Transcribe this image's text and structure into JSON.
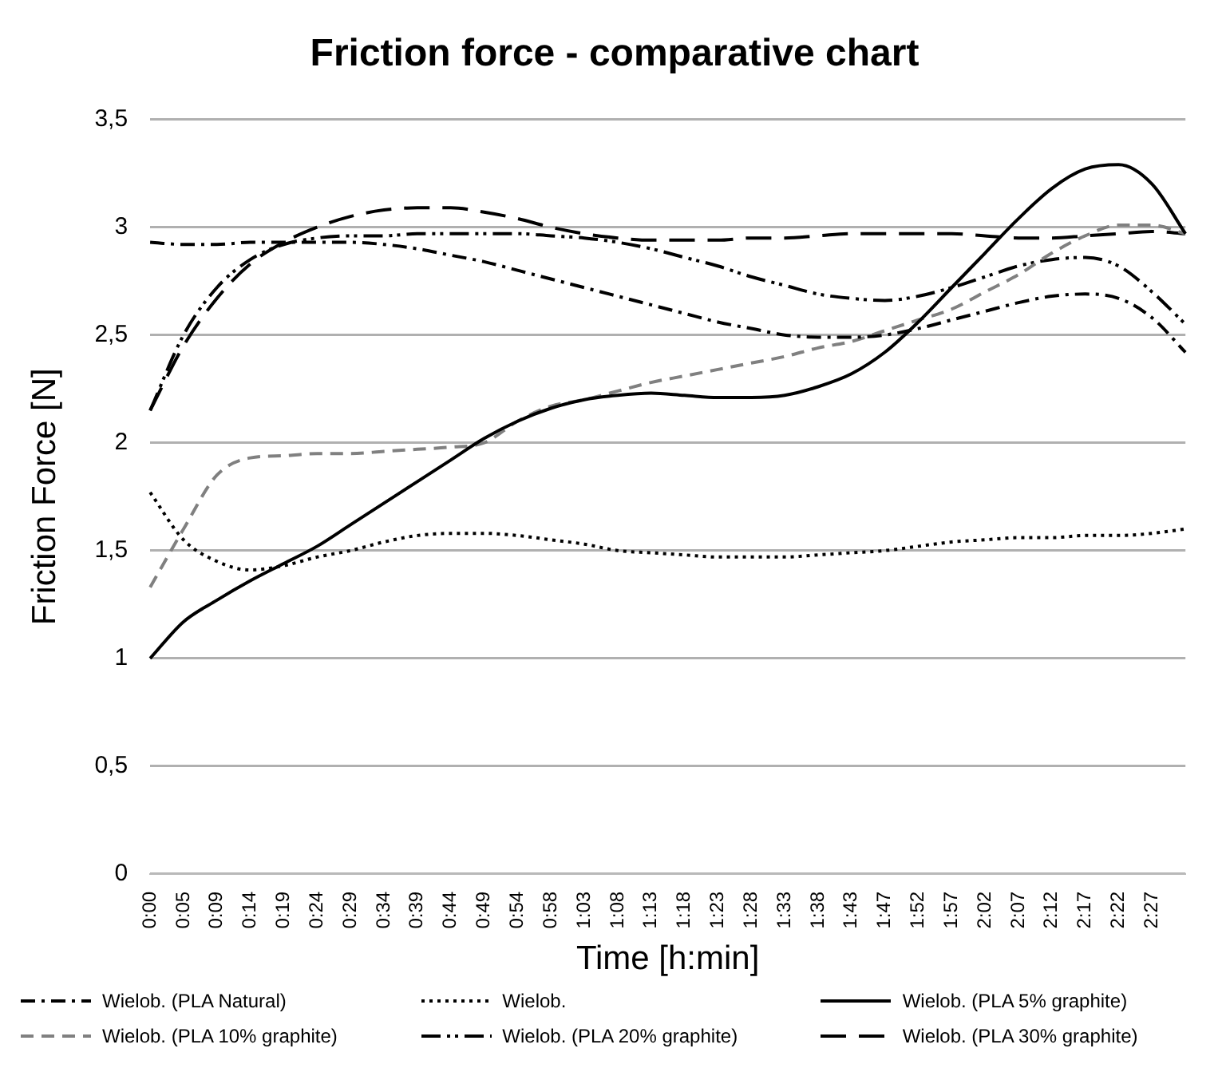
{
  "chart_data": {
    "type": "line",
    "title": "Friction force - comparative chart",
    "xlabel": "Time [h:min]",
    "ylabel": "Friction Force [N]",
    "categories": [
      "0:00",
      "0:05",
      "0:09",
      "0:14",
      "0:19",
      "0:24",
      "0:29",
      "0:34",
      "0:39",
      "0:44",
      "0:49",
      "0:54",
      "0:58",
      "1:03",
      "1:08",
      "1:13",
      "1:18",
      "1:23",
      "1:28",
      "1:33",
      "1:38",
      "1:43",
      "1:47",
      "1:52",
      "1:57",
      "2:02",
      "2:07",
      "2:12",
      "2:17",
      "2:22",
      "2:27",
      null
    ],
    "ylim": [
      0,
      3.5
    ],
    "yticks": [
      0,
      {
        "value": 0.5,
        "label": "0,5"
      },
      1,
      {
        "value": 1.5,
        "label": "1,5"
      },
      2,
      {
        "value": 2.5,
        "label": "2,5"
      },
      3,
      {
        "value": 3.5,
        "label": "3,5"
      }
    ],
    "grid": "y",
    "legend": "bottom",
    "marker": "none",
    "series": [
      {
        "name": "Wielob. (PLA Natural)",
        "color": "#000000",
        "line_style": "dashdot",
        "values": [
          2.93,
          2.92,
          2.92,
          2.93,
          2.93,
          2.93,
          2.93,
          2.92,
          2.9,
          2.87,
          2.84,
          2.8,
          2.76,
          2.72,
          2.68,
          2.64,
          2.6,
          2.56,
          2.53,
          2.5,
          2.49,
          2.49,
          2.5,
          2.53,
          2.57,
          2.61,
          2.65,
          2.68,
          2.69,
          2.67,
          2.58,
          2.42
        ]
      },
      {
        "name": "Wielob.",
        "color": "#000000",
        "line_style": "dotted",
        "values": [
          1.77,
          1.55,
          1.45,
          1.41,
          1.43,
          1.47,
          1.5,
          1.54,
          1.57,
          1.58,
          1.58,
          1.57,
          1.55,
          1.53,
          1.5,
          1.49,
          1.48,
          1.47,
          1.47,
          1.47,
          1.48,
          1.49,
          1.5,
          1.52,
          1.54,
          1.55,
          1.56,
          1.56,
          1.57,
          1.57,
          1.58,
          1.6
        ]
      },
      {
        "name": "Wielob. (PLA 5% graphite)",
        "color": "#000000",
        "line_style": "solid",
        "values": [
          1.0,
          1.17,
          1.27,
          1.36,
          1.44,
          1.52,
          1.62,
          1.72,
          1.82,
          1.92,
          2.02,
          2.1,
          2.16,
          2.2,
          2.22,
          2.23,
          2.22,
          2.21,
          2.21,
          2.22,
          2.26,
          2.32,
          2.42,
          2.56,
          2.72,
          2.88,
          3.04,
          3.18,
          3.27,
          3.29,
          3.2,
          2.97
        ]
      },
      {
        "name": "Wielob. (PLA 10% graphite)",
        "color": "#808080",
        "line_style": "dashed",
        "values": [
          1.33,
          1.6,
          1.85,
          1.93,
          1.94,
          1.95,
          1.95,
          1.96,
          1.97,
          1.98,
          2.0,
          2.1,
          2.17,
          2.2,
          2.24,
          2.28,
          2.31,
          2.34,
          2.37,
          2.4,
          2.44,
          2.47,
          2.52,
          2.57,
          2.62,
          2.7,
          2.78,
          2.88,
          2.96,
          3.01,
          3.01,
          2.97
        ]
      },
      {
        "name": "Wielob. (PLA 20% graphite)",
        "color": "#000000",
        "line_style": "dashdotdot",
        "values": [
          2.15,
          2.5,
          2.72,
          2.85,
          2.92,
          2.95,
          2.96,
          2.96,
          2.97,
          2.97,
          2.97,
          2.97,
          2.96,
          2.95,
          2.93,
          2.9,
          2.86,
          2.82,
          2.77,
          2.73,
          2.69,
          2.67,
          2.66,
          2.68,
          2.72,
          2.77,
          2.82,
          2.85,
          2.86,
          2.82,
          2.7,
          2.55
        ]
      },
      {
        "name": "Wielob. (PLA 30% graphite)",
        "color": "#000000",
        "line_style": "longdash",
        "values": [
          2.15,
          2.45,
          2.67,
          2.83,
          2.93,
          3.0,
          3.05,
          3.08,
          3.09,
          3.09,
          3.07,
          3.04,
          3.0,
          2.97,
          2.95,
          2.94,
          2.94,
          2.94,
          2.95,
          2.95,
          2.96,
          2.97,
          2.97,
          2.97,
          2.97,
          2.96,
          2.95,
          2.95,
          2.96,
          2.97,
          2.98,
          2.97
        ]
      }
    ]
  }
}
